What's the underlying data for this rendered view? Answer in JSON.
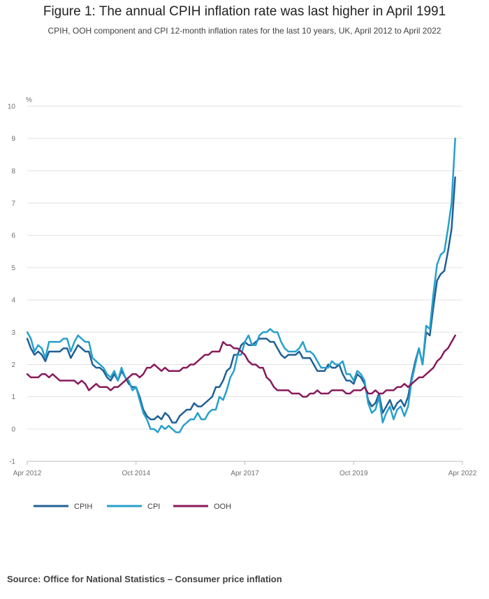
{
  "chart_data": {
    "type": "line",
    "title": "Figure 1: The annual CPIH inflation rate was last higher in April 1991",
    "subtitle": "CPIH, OOH component and CPI 12-month inflation rates for the last 10 years, UK, April 2012 to April 2022",
    "ylabel": "%",
    "ylim": [
      -1,
      10
    ],
    "yticks": [
      "-1",
      "0",
      "1",
      "2",
      "3",
      "4",
      "5",
      "6",
      "7",
      "8",
      "9",
      "10"
    ],
    "xlim": [
      "2012-04",
      "2022-04"
    ],
    "xticks": [
      {
        "value": "2012-04",
        "label": "Apr 2012"
      },
      {
        "value": "2014-10",
        "label": "Oct 2014"
      },
      {
        "value": "2017-04",
        "label": "Apr 2017"
      },
      {
        "value": "2019-10",
        "label": "Oct 2019"
      },
      {
        "value": "2022-04",
        "label": "Apr 2022"
      }
    ],
    "grid": true,
    "legend_position": "bottom-left",
    "x_start": "2012-04",
    "x_frequency": "monthly",
    "series": [
      {
        "name": "CPIH",
        "color": "#206095",
        "values": [
          2.8,
          2.5,
          2.3,
          2.4,
          2.3,
          2.1,
          2.4,
          2.4,
          2.4,
          2.4,
          2.5,
          2.5,
          2.2,
          2.4,
          2.6,
          2.5,
          2.4,
          2.4,
          2.0,
          1.9,
          1.9,
          1.8,
          1.6,
          1.5,
          1.7,
          1.5,
          1.8,
          1.6,
          1.4,
          1.3,
          1.3,
          1.0,
          0.6,
          0.4,
          0.3,
          0.3,
          0.4,
          0.3,
          0.5,
          0.4,
          0.2,
          0.2,
          0.4,
          0.5,
          0.6,
          0.6,
          0.8,
          0.7,
          0.7,
          0.8,
          0.9,
          1.0,
          1.3,
          1.3,
          1.5,
          1.8,
          1.9,
          2.3,
          2.3,
          2.6,
          2.7,
          2.6,
          2.6,
          2.7,
          2.8,
          2.8,
          2.8,
          2.7,
          2.7,
          2.5,
          2.3,
          2.2,
          2.3,
          2.3,
          2.3,
          2.4,
          2.2,
          2.2,
          2.2,
          2.0,
          1.8,
          1.8,
          1.8,
          2.0,
          1.9,
          1.9,
          2.0,
          1.7,
          1.5,
          1.5,
          1.4,
          1.7,
          1.6,
          1.4,
          0.9,
          0.7,
          0.8,
          1.1,
          0.5,
          0.7,
          0.9,
          0.6,
          0.8,
          0.9,
          0.7,
          1.0,
          1.6,
          2.1,
          2.5,
          2.0,
          3.0,
          2.9,
          3.8,
          4.6,
          4.8,
          4.9,
          5.5,
          6.2,
          7.8
        ]
      },
      {
        "name": "CPI",
        "color": "#27a0cc",
        "values": [
          3.0,
          2.8,
          2.4,
          2.6,
          2.5,
          2.2,
          2.7,
          2.7,
          2.7,
          2.7,
          2.8,
          2.8,
          2.4,
          2.7,
          2.9,
          2.8,
          2.7,
          2.7,
          2.2,
          2.1,
          2.0,
          1.9,
          1.7,
          1.6,
          1.8,
          1.5,
          1.9,
          1.6,
          1.5,
          1.2,
          1.3,
          0.9,
          0.5,
          0.3,
          0.0,
          0.0,
          -0.1,
          0.1,
          0.0,
          0.1,
          0.0,
          -0.1,
          -0.1,
          0.1,
          0.2,
          0.3,
          0.3,
          0.5,
          0.3,
          0.3,
          0.5,
          0.6,
          0.6,
          1.0,
          0.9,
          1.2,
          1.6,
          1.8,
          2.3,
          2.3,
          2.7,
          2.9,
          2.6,
          2.6,
          2.9,
          3.0,
          3.0,
          3.1,
          3.0,
          3.0,
          2.7,
          2.5,
          2.4,
          2.4,
          2.4,
          2.5,
          2.7,
          2.4,
          2.4,
          2.3,
          2.1,
          1.9,
          1.9,
          1.9,
          2.1,
          2.0,
          2.0,
          2.1,
          1.7,
          1.7,
          1.5,
          1.8,
          1.7,
          1.5,
          0.8,
          0.5,
          0.6,
          1.0,
          0.2,
          0.5,
          0.7,
          0.3,
          0.6,
          0.7,
          0.4,
          0.7,
          1.5,
          2.0,
          2.5,
          2.0,
          3.2,
          3.1,
          4.2,
          5.1,
          5.4,
          5.5,
          6.2,
          7.0,
          9.0
        ]
      },
      {
        "name": "OOH",
        "color": "#871a5b",
        "values": [
          1.7,
          1.6,
          1.6,
          1.6,
          1.7,
          1.7,
          1.6,
          1.7,
          1.6,
          1.5,
          1.5,
          1.5,
          1.5,
          1.5,
          1.4,
          1.5,
          1.4,
          1.2,
          1.3,
          1.4,
          1.3,
          1.3,
          1.3,
          1.2,
          1.3,
          1.3,
          1.4,
          1.5,
          1.6,
          1.7,
          1.7,
          1.6,
          1.7,
          1.9,
          1.9,
          2.0,
          1.9,
          1.8,
          1.9,
          1.8,
          1.8,
          1.8,
          1.8,
          1.9,
          1.9,
          2.0,
          2.0,
          2.1,
          2.2,
          2.3,
          2.3,
          2.4,
          2.4,
          2.4,
          2.7,
          2.6,
          2.6,
          2.5,
          2.5,
          2.4,
          2.3,
          2.1,
          2.0,
          2.0,
          1.9,
          1.9,
          1.6,
          1.5,
          1.3,
          1.2,
          1.2,
          1.2,
          1.2,
          1.1,
          1.1,
          1.1,
          1.0,
          1.0,
          1.1,
          1.1,
          1.2,
          1.1,
          1.1,
          1.1,
          1.2,
          1.2,
          1.2,
          1.2,
          1.1,
          1.1,
          1.2,
          1.2,
          1.2,
          1.3,
          1.1,
          1.1,
          1.2,
          1.1,
          1.1,
          1.2,
          1.2,
          1.2,
          1.3,
          1.3,
          1.4,
          1.3,
          1.4,
          1.5,
          1.6,
          1.6,
          1.7,
          1.8,
          1.9,
          2.1,
          2.2,
          2.4,
          2.5,
          2.7,
          2.9
        ]
      }
    ]
  },
  "source_text": "Source: Office for National Statistics – Consumer price inflation"
}
